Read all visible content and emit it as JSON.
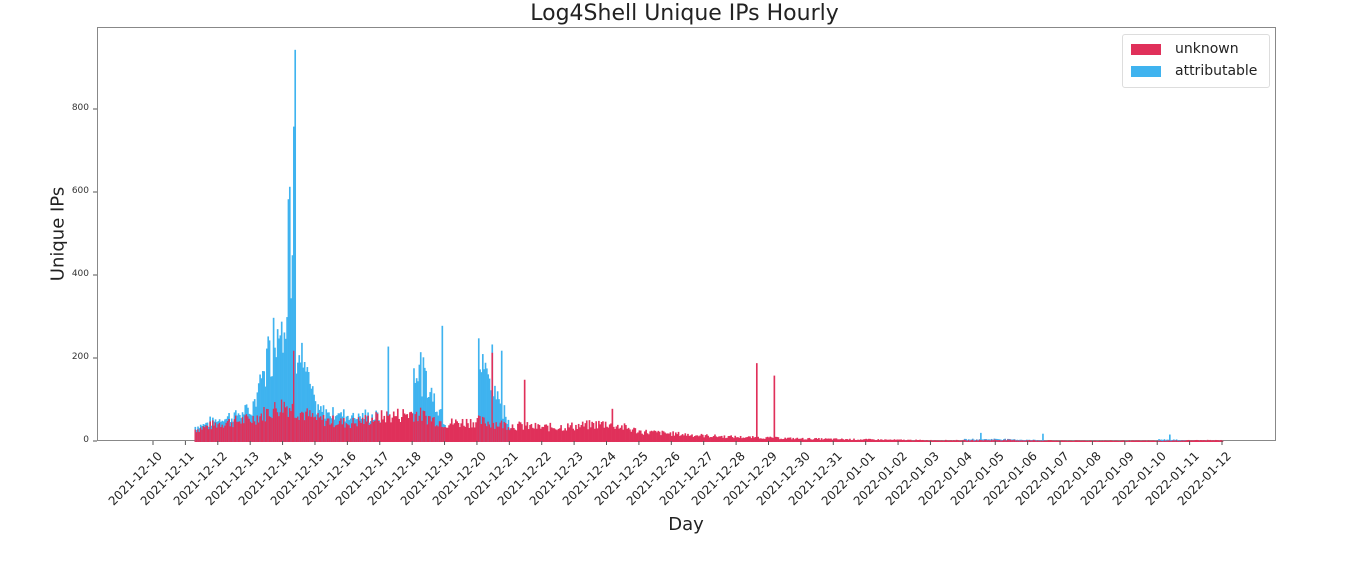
{
  "chart_data": {
    "type": "bar",
    "title": "Log4Shell Unique IPs Hourly",
    "xlabel": "Day",
    "ylabel": "Unique IPs",
    "ylim": [
      0,
      1000
    ],
    "yticks": [
      0,
      200,
      400,
      600,
      800
    ],
    "grid": false,
    "legend_position": "upper right",
    "stacked": true,
    "resolution": "hourly",
    "categories": [
      "2021-12-10",
      "2021-12-11",
      "2021-12-12",
      "2021-12-13",
      "2021-12-14",
      "2021-12-15",
      "2021-12-16",
      "2021-12-17",
      "2021-12-18",
      "2021-12-19",
      "2021-12-20",
      "2021-12-21",
      "2021-12-22",
      "2021-12-23",
      "2021-12-24",
      "2021-12-25",
      "2021-12-26",
      "2021-12-27",
      "2021-12-28",
      "2021-12-29",
      "2021-12-30",
      "2021-12-31",
      "2022-01-01",
      "2022-01-02",
      "2022-01-03",
      "2022-01-04",
      "2022-01-05",
      "2022-01-06",
      "2022-01-07",
      "2022-01-08",
      "2022-01-09",
      "2022-01-10",
      "2022-01-11",
      "2022-01-12"
    ],
    "series": [
      {
        "name": "unknown",
        "color": "#e0305a",
        "daily_approx": [
          0,
          25,
          45,
          55,
          90,
          55,
          45,
          60,
          70,
          45,
          50,
          40,
          35,
          38,
          45,
          25,
          20,
          15,
          12,
          10,
          8,
          7,
          6,
          5,
          4,
          4,
          5,
          4,
          3,
          3,
          3,
          3,
          4,
          4
        ],
        "spikes": [
          {
            "x": "2021-12-14 07:00",
            "value": 220
          },
          {
            "x": "2021-12-20 10:00",
            "value": 215
          },
          {
            "x": "2021-12-21 10:00",
            "value": 150
          },
          {
            "x": "2021-12-24 03:00",
            "value": 80
          },
          {
            "x": "2021-12-28 14:00",
            "value": 190
          },
          {
            "x": "2021-12-29 03:00",
            "value": 160
          }
        ]
      },
      {
        "name": "attributable",
        "color": "#3fb3ef",
        "daily_approx": [
          0,
          5,
          10,
          20,
          250,
          20,
          20,
          0,
          130,
          0,
          150,
          0,
          0,
          0,
          0,
          0,
          0,
          0,
          0,
          0,
          0,
          0,
          0,
          0,
          0,
          2,
          2,
          1,
          0,
          0,
          0,
          3,
          0,
          0
        ],
        "spikes": [
          {
            "x": "2021-12-13 22:00",
            "value": 290
          },
          {
            "x": "2021-12-14 03:00",
            "value": 585
          },
          {
            "x": "2021-12-14 04:00",
            "value": 615
          },
          {
            "x": "2021-12-14 06:00",
            "value": 450
          },
          {
            "x": "2021-12-14 07:00",
            "value": 760
          },
          {
            "x": "2021-12-14 08:00",
            "value": 945
          },
          {
            "x": "2021-12-17 05:00",
            "value": 230
          },
          {
            "x": "2021-12-18 21:00",
            "value": 280
          },
          {
            "x": "2021-12-20 10:00",
            "value": 235
          },
          {
            "x": "2021-12-20 17:00",
            "value": 220
          },
          {
            "x": "2022-01-04 12:00",
            "value": 22
          },
          {
            "x": "2022-01-06 10:00",
            "value": 20
          },
          {
            "x": "2022-01-10 08:00",
            "value": 18
          }
        ]
      }
    ]
  },
  "legend": {
    "items": [
      {
        "label": "unknown",
        "color": "#e0305a"
      },
      {
        "label": "attributable",
        "color": "#3fb3ef"
      }
    ]
  },
  "axes": {
    "y_tick_labels": [
      "0",
      "200",
      "400",
      "600",
      "800"
    ],
    "x_tick_labels": [
      "2021-12-10",
      "2021-12-11",
      "2021-12-12",
      "2021-12-13",
      "2021-12-14",
      "2021-12-15",
      "2021-12-16",
      "2021-12-17",
      "2021-12-18",
      "2021-12-19",
      "2021-12-20",
      "2021-12-21",
      "2021-12-22",
      "2021-12-23",
      "2021-12-24",
      "2021-12-25",
      "2021-12-26",
      "2021-12-27",
      "2021-12-28",
      "2021-12-29",
      "2021-12-30",
      "2021-12-31",
      "2022-01-01",
      "2022-01-02",
      "2022-01-03",
      "2022-01-04",
      "2022-01-05",
      "2022-01-06",
      "2022-01-07",
      "2022-01-08",
      "2022-01-09",
      "2022-01-10",
      "2022-01-11",
      "2022-01-12"
    ]
  }
}
